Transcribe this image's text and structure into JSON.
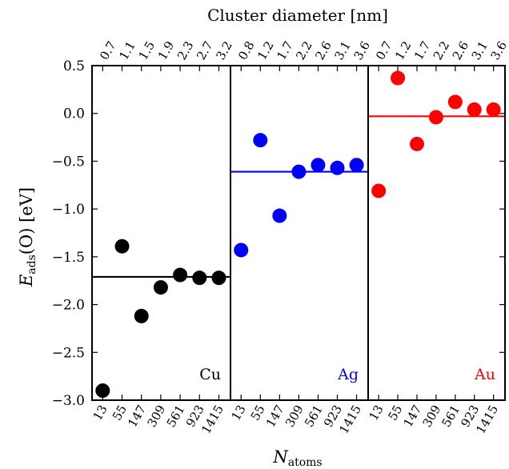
{
  "chart_data": {
    "type": "scatter",
    "x_label": "N",
    "x_label_sub": "atoms",
    "y_label_main": "E",
    "y_label_sub": "ads",
    "y_label_tail": "(O) [eV]",
    "top_axis_label": "Cluster diameter [nm]",
    "ylim": [
      -3.0,
      0.5
    ],
    "yticks": [
      0.5,
      0.0,
      -0.5,
      -1.0,
      -1.5,
      -2.0,
      -2.5,
      -3.0
    ],
    "ytick_labels": [
      "0.5",
      "0.0",
      "−0.5",
      "−1.0",
      "−1.5",
      "−2.0",
      "−2.5",
      "−3.0"
    ],
    "bottom_tick_labels": [
      "13",
      "55",
      "147",
      "309",
      "561",
      "923",
      "1415"
    ],
    "panels": [
      {
        "name": "Cu",
        "color": "#000000",
        "top_tick_labels": [
          "0.7",
          "1.1",
          "1.5",
          "1.9",
          "2.3",
          "2.7",
          "3.2"
        ],
        "values": [
          -2.9,
          -1.39,
          -2.12,
          -1.82,
          -1.69,
          -1.72,
          -1.72
        ],
        "average": -1.71
      },
      {
        "name": "Ag",
        "color": "#0000ff",
        "top_tick_labels": [
          "0.8",
          "1.2",
          "1.7",
          "2.2",
          "2.6",
          "3.1",
          "3.6"
        ],
        "values": [
          -1.43,
          -0.28,
          -1.07,
          -0.61,
          -0.54,
          -0.57,
          -0.54
        ],
        "average": -0.61
      },
      {
        "name": "Au",
        "color": "#ff0000",
        "top_tick_labels": [
          "0.7",
          "1.2",
          "1.7",
          "2.2",
          "2.6",
          "3.1",
          "3.6"
        ],
        "values": [
          -0.81,
          0.37,
          -0.32,
          -0.04,
          0.12,
          0.04,
          0.04
        ],
        "average": -0.03
      }
    ]
  }
}
